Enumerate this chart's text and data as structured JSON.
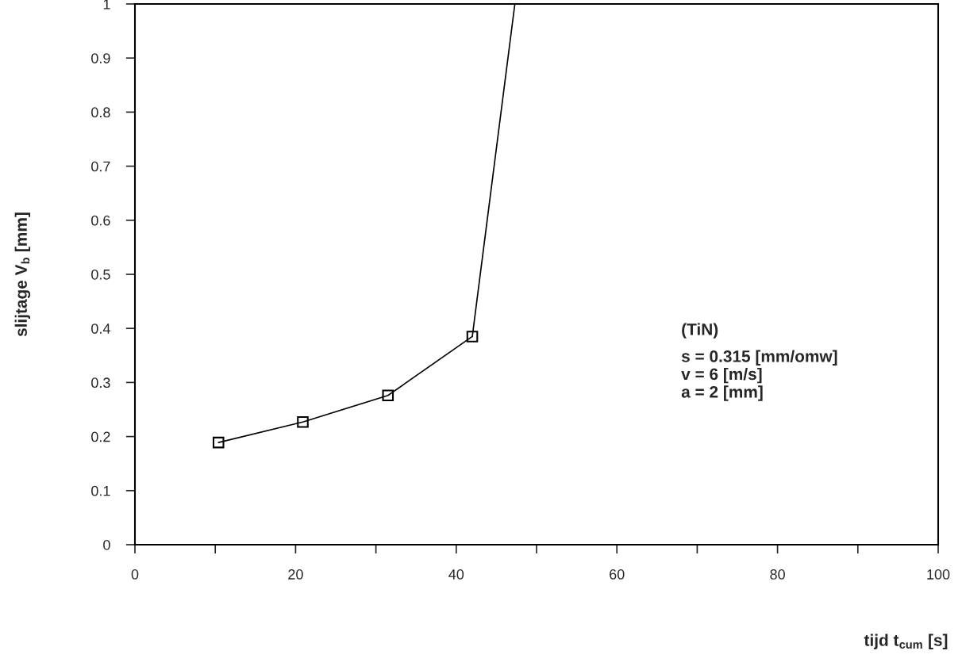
{
  "chart_data": {
    "type": "line",
    "xlabel": "tijd t$_{cum}$ [s]",
    "ylabel": "slijtage V$_{b}$ [mm]",
    "series": [
      {
        "color": "#000000",
        "marker": "square",
        "x": [
          10.4,
          20.9,
          31.5,
          42.0
        ],
        "values": [
          0.189,
          0.227,
          0.276,
          0.385
        ]
      },
      {
        "color": "#000000",
        "marker": "none",
        "x": [
          42.0,
          47.3
        ],
        "values": [
          0.385,
          1.0
        ]
      }
    ],
    "xlim": [
      0,
      100
    ],
    "ylim": [
      0,
      1
    ],
    "xticks": [
      0,
      {
        "value": 10,
        "label": null
      },
      20,
      {
        "value": 30,
        "label": null
      },
      40,
      {
        "value": 50,
        "label": null
      },
      60,
      {
        "value": 70,
        "label": null
      },
      80,
      {
        "value": 90,
        "label": null
      },
      100
    ],
    "yticks": [
      0,
      0.1,
      0.2,
      0.3,
      0.4,
      0.5,
      0.6,
      0.7,
      0.8,
      0.9,
      1
    ],
    "grid": false,
    "legend": false,
    "annotations": [
      "(TiN)",
      "s = 0.315 [mm/omw]\nv = 6 [m/s]\na = 2 [mm]"
    ]
  }
}
